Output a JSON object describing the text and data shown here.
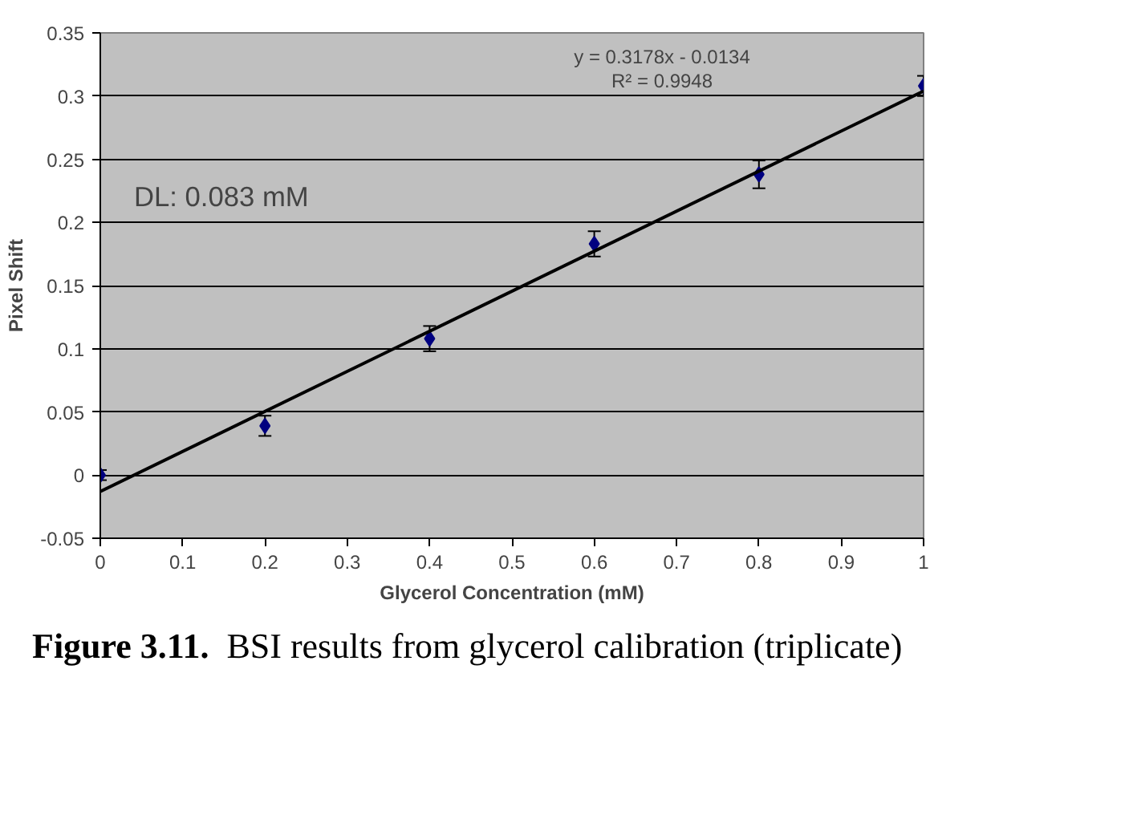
{
  "chart_data": {
    "type": "scatter",
    "xlabel": "Glycerol Concentration (mM)",
    "ylabel": "Pixel Shift",
    "x": [
      0,
      0.2,
      0.4,
      0.6,
      0.8,
      1
    ],
    "series": [
      {
        "marker": "diamond",
        "color": "#000080",
        "values": [
          0,
          0.039,
          0.108,
          0.183,
          0.238,
          0.308
        ],
        "errors": [
          0.004,
          0.008,
          0.01,
          0.01,
          0.011,
          0.008
        ]
      },
      {
        "type": "line",
        "color": "#000000",
        "x": [
          0,
          1
        ],
        "values": [
          -0.013,
          0.304
        ]
      }
    ],
    "line_style": "solid",
    "xlim": [
      0,
      1
    ],
    "xticks": [
      0,
      0.1,
      0.2,
      0.3,
      0.4,
      0.5,
      0.6,
      0.7,
      0.8,
      0.9,
      1
    ],
    "ylim": [
      -0.05,
      0.35
    ],
    "yticks": [
      -0.05,
      0,
      0.05,
      0.1,
      0.15,
      0.2,
      0.25,
      0.3,
      0.35
    ],
    "grid": "y",
    "annotations": [
      "y = 0.3178x - 0.0134",
      "R² = 0.9948",
      "DL: 0.083 mM",
      "Figure 3.11.  BSI results from glycerol calibration (triplicate)"
    ]
  }
}
